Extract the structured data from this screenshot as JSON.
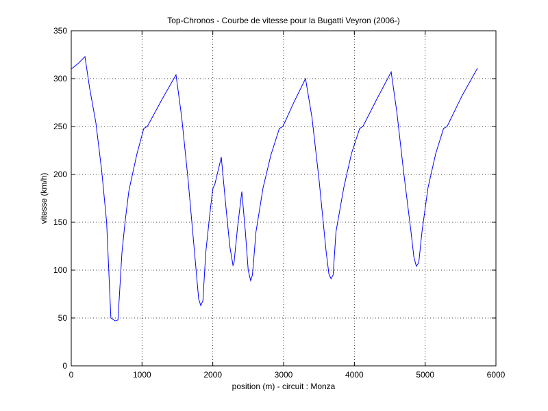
{
  "chart_data": {
    "type": "line",
    "title": "Top-Chronos - Courbe de vitesse pour la Bugatti Veyron (2006-)",
    "x_label": "position (m) - circuit : Monza",
    "y_label": "vitesse (km/h)",
    "color": "#0000ff",
    "grid": true,
    "xlim": [
      0,
      6000
    ],
    "xticks": [
      0,
      1000,
      2000,
      3000,
      4000,
      5000,
      6000
    ],
    "ylim": [
      0,
      350
    ],
    "yticks": [
      0,
      50,
      100,
      150,
      200,
      250,
      300,
      350
    ],
    "x": [
      0,
      100,
      194,
      260,
      348,
      430,
      500,
      560,
      620,
      660,
      716,
      760,
      813,
      835,
      930,
      1025,
      1075,
      1280,
      1480,
      1560,
      1650,
      1740,
      1800,
      1830,
      1860,
      1900,
      1960,
      2000,
      2030,
      2120,
      2180,
      2240,
      2285,
      2300,
      2350,
      2410,
      2460,
      2500,
      2535,
      2560,
      2610,
      2710,
      2820,
      2940,
      2990,
      3150,
      3310,
      3400,
      3500,
      3600,
      3640,
      3670,
      3700,
      3740,
      3850,
      3960,
      4075,
      4120,
      4320,
      4520,
      4600,
      4700,
      4800,
      4840,
      4875,
      4910,
      4955,
      5040,
      5150,
      5260,
      5310,
      5520,
      5740
    ],
    "values": [
      310,
      316,
      323,
      290,
      254,
      204,
      150,
      50,
      47,
      48,
      118,
      150,
      182,
      190,
      222,
      248,
      250,
      278,
      304,
      260,
      195,
      120,
      70,
      63,
      68,
      118,
      160,
      185,
      190,
      218,
      170,
      125,
      105,
      108,
      145,
      182,
      140,
      100,
      89,
      95,
      140,
      186,
      220,
      248,
      250,
      276,
      300,
      260,
      195,
      120,
      96,
      91,
      95,
      140,
      186,
      222,
      248,
      250,
      279,
      307,
      265,
      200,
      140,
      114,
      104,
      108,
      140,
      186,
      222,
      248,
      250,
      282,
      311
    ]
  }
}
